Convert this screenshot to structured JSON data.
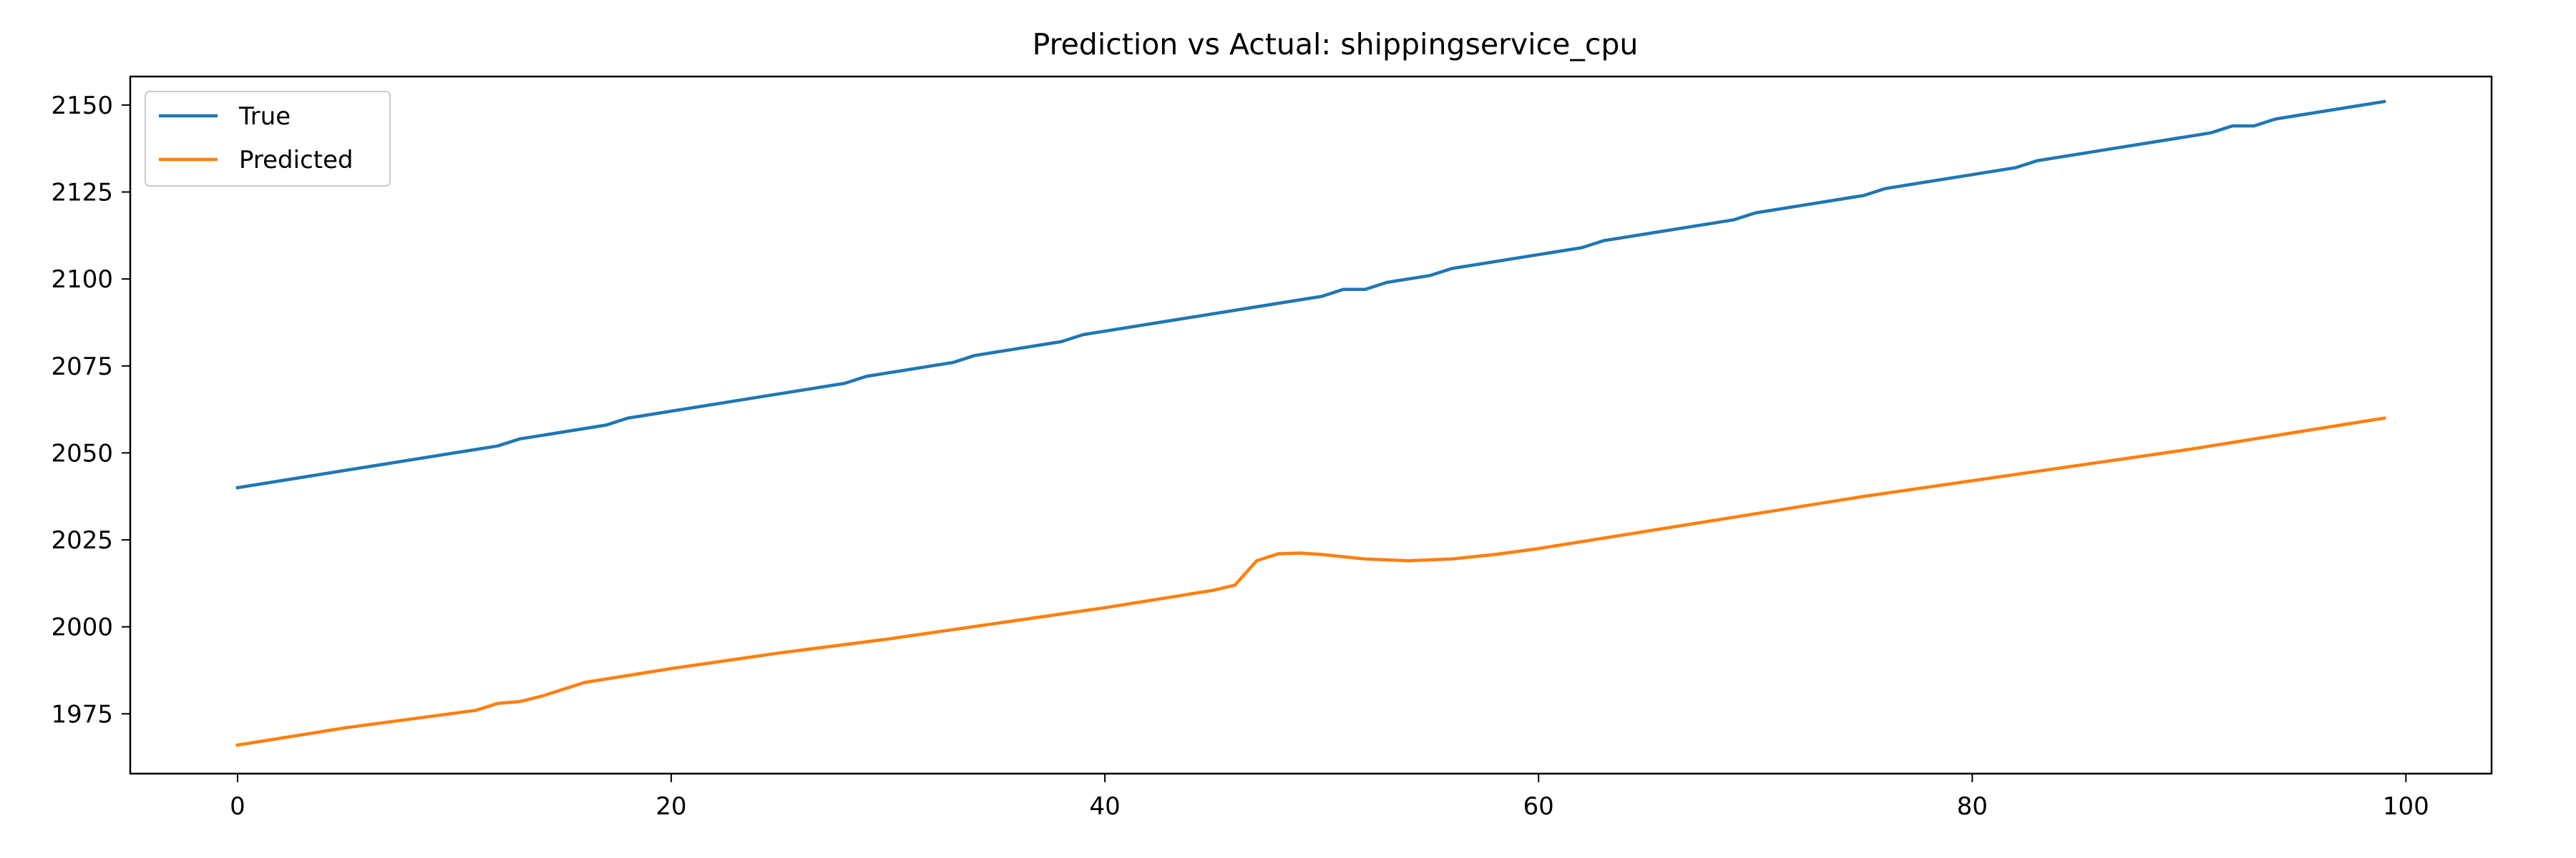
{
  "chart_data": {
    "type": "line",
    "title": "Prediction vs Actual: shippingservice_cpu",
    "xlabel": "",
    "ylabel": "",
    "xlim": [
      -4.95,
      103.95
    ],
    "ylim": [
      1957.8,
      2158.2
    ],
    "x_ticks": [
      0,
      20,
      40,
      60,
      80,
      100
    ],
    "y_ticks": [
      1975,
      2000,
      2025,
      2050,
      2075,
      2100,
      2125,
      2150
    ],
    "grid": false,
    "legend_position": "top-left",
    "series": [
      {
        "name": "True",
        "color": "#1f77b4",
        "points": [
          [
            0,
            2040
          ],
          [
            12,
            2052
          ],
          [
            13,
            2054
          ],
          [
            17,
            2058
          ],
          [
            18,
            2060
          ],
          [
            28,
            2070
          ],
          [
            29,
            2072
          ],
          [
            33,
            2076
          ],
          [
            34,
            2078
          ],
          [
            38,
            2082
          ],
          [
            39,
            2084
          ],
          [
            50,
            2095
          ],
          [
            51,
            2097
          ],
          [
            52,
            2097
          ],
          [
            53,
            2099
          ],
          [
            55,
            2101
          ],
          [
            56,
            2103
          ],
          [
            62,
            2109
          ],
          [
            63,
            2111
          ],
          [
            69,
            2117
          ],
          [
            70,
            2119
          ],
          [
            75,
            2124
          ],
          [
            76,
            2126
          ],
          [
            82,
            2132
          ],
          [
            83,
            2134
          ],
          [
            91,
            2142
          ],
          [
            92,
            2144
          ],
          [
            93,
            2144
          ],
          [
            94,
            2146
          ],
          [
            99,
            2151
          ]
        ]
      },
      {
        "name": "Predicted",
        "color": "#ff7f0e",
        "points": [
          [
            0,
            1966
          ],
          [
            5,
            1971
          ],
          [
            11,
            1976
          ],
          [
            12,
            1978
          ],
          [
            13,
            1978.5
          ],
          [
            14,
            1980
          ],
          [
            15,
            1982
          ],
          [
            16,
            1984
          ],
          [
            20,
            1988
          ],
          [
            25,
            1992.5
          ],
          [
            30,
            1996.5
          ],
          [
            35,
            2001
          ],
          [
            40,
            2005.5
          ],
          [
            45,
            2010.5
          ],
          [
            46,
            2012
          ],
          [
            47,
            2019
          ],
          [
            48,
            2021
          ],
          [
            49,
            2021.2
          ],
          [
            50,
            2020.8
          ],
          [
            52,
            2019.5
          ],
          [
            54,
            2019
          ],
          [
            56,
            2019.5
          ],
          [
            58,
            2020.8
          ],
          [
            60,
            2022.5
          ],
          [
            65,
            2027.5
          ],
          [
            70,
            2032.5
          ],
          [
            75,
            2037.5
          ],
          [
            80,
            2042
          ],
          [
            85,
            2046.5
          ],
          [
            90,
            2051
          ],
          [
            95,
            2056
          ],
          [
            99,
            2060
          ]
        ]
      }
    ]
  }
}
